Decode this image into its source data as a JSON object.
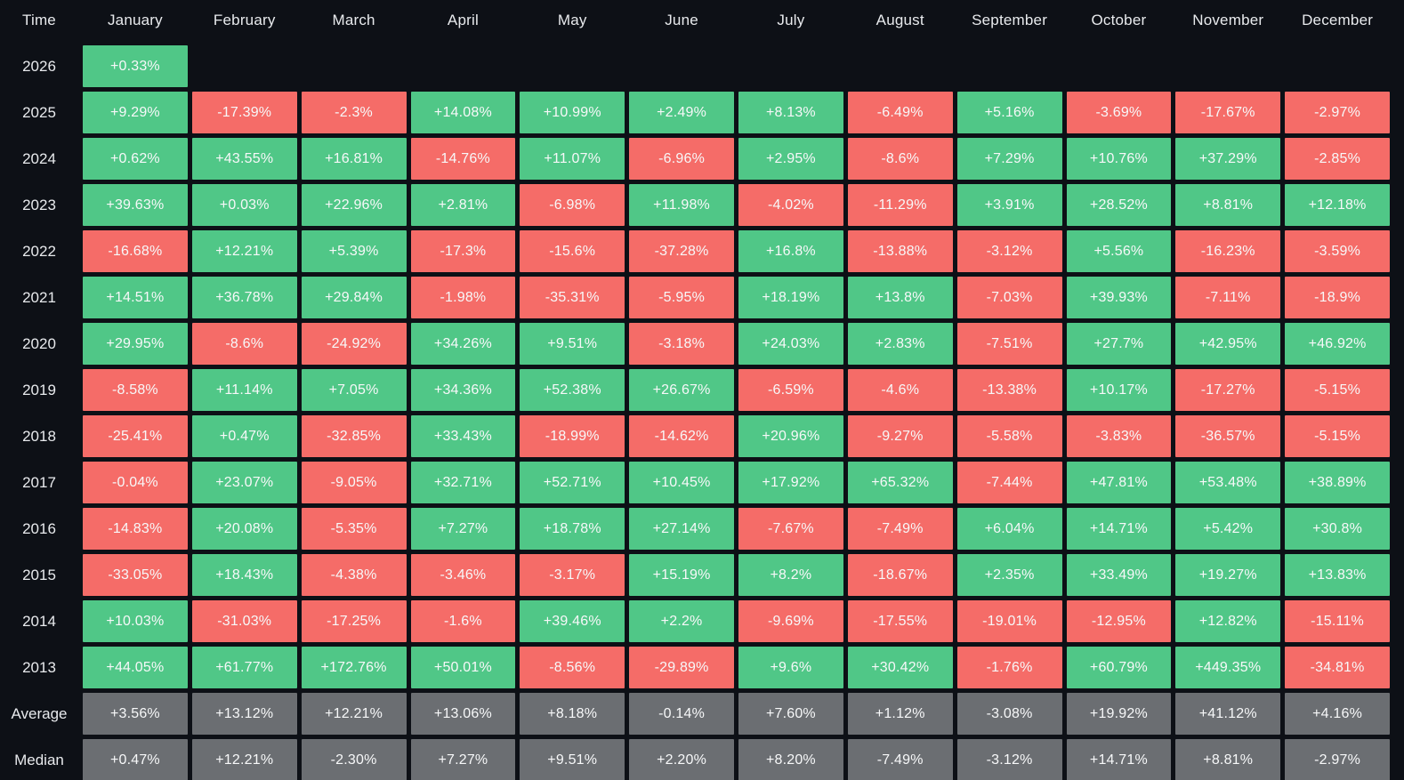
{
  "palette": {
    "background": "#0D1016",
    "positive_green": "#50C787",
    "negative_red": "#F56C68",
    "summary_gray": "#6B6E72",
    "header_text": "#E8EAED",
    "cell_text": "#F7F8F9"
  },
  "chart_data": {
    "type": "heatmap",
    "description_visible": "Monthly percentage returns table by year, green positive / red negative, gray summary rows",
    "columns": [
      "Time",
      "January",
      "February",
      "March",
      "April",
      "May",
      "June",
      "July",
      "August",
      "September",
      "October",
      "November",
      "December"
    ],
    "rows": [
      {
        "label": "2026",
        "type": "year",
        "values": [
          "+0.33%",
          null,
          null,
          null,
          null,
          null,
          null,
          null,
          null,
          null,
          null,
          null
        ]
      },
      {
        "label": "2025",
        "type": "year",
        "values": [
          "+9.29%",
          "-17.39%",
          "-2.3%",
          "+14.08%",
          "+10.99%",
          "+2.49%",
          "+8.13%",
          "-6.49%",
          "+5.16%",
          "-3.69%",
          "-17.67%",
          "-2.97%"
        ]
      },
      {
        "label": "2024",
        "type": "year",
        "values": [
          "+0.62%",
          "+43.55%",
          "+16.81%",
          "-14.76%",
          "+11.07%",
          "-6.96%",
          "+2.95%",
          "-8.6%",
          "+7.29%",
          "+10.76%",
          "+37.29%",
          "-2.85%"
        ]
      },
      {
        "label": "2023",
        "type": "year",
        "values": [
          "+39.63%",
          "+0.03%",
          "+22.96%",
          "+2.81%",
          "-6.98%",
          "+11.98%",
          "-4.02%",
          "-11.29%",
          "+3.91%",
          "+28.52%",
          "+8.81%",
          "+12.18%"
        ]
      },
      {
        "label": "2022",
        "type": "year",
        "values": [
          "-16.68%",
          "+12.21%",
          "+5.39%",
          "-17.3%",
          "-15.6%",
          "-37.28%",
          "+16.8%",
          "-13.88%",
          "-3.12%",
          "+5.56%",
          "-16.23%",
          "-3.59%"
        ]
      },
      {
        "label": "2021",
        "type": "year",
        "values": [
          "+14.51%",
          "+36.78%",
          "+29.84%",
          "-1.98%",
          "-35.31%",
          "-5.95%",
          "+18.19%",
          "+13.8%",
          "-7.03%",
          "+39.93%",
          "-7.11%",
          "-18.9%"
        ]
      },
      {
        "label": "2020",
        "type": "year",
        "values": [
          "+29.95%",
          "-8.6%",
          "-24.92%",
          "+34.26%",
          "+9.51%",
          "-3.18%",
          "+24.03%",
          "+2.83%",
          "-7.51%",
          "+27.7%",
          "+42.95%",
          "+46.92%"
        ]
      },
      {
        "label": "2019",
        "type": "year",
        "values": [
          "-8.58%",
          "+11.14%",
          "+7.05%",
          "+34.36%",
          "+52.38%",
          "+26.67%",
          "-6.59%",
          "-4.6%",
          "-13.38%",
          "+10.17%",
          "-17.27%",
          "-5.15%"
        ]
      },
      {
        "label": "2018",
        "type": "year",
        "values": [
          "-25.41%",
          "+0.47%",
          "-32.85%",
          "+33.43%",
          "-18.99%",
          "-14.62%",
          "+20.96%",
          "-9.27%",
          "-5.58%",
          "-3.83%",
          "-36.57%",
          "-5.15%"
        ]
      },
      {
        "label": "2017",
        "type": "year",
        "values": [
          "-0.04%",
          "+23.07%",
          "-9.05%",
          "+32.71%",
          "+52.71%",
          "+10.45%",
          "+17.92%",
          "+65.32%",
          "-7.44%",
          "+47.81%",
          "+53.48%",
          "+38.89%"
        ]
      },
      {
        "label": "2016",
        "type": "year",
        "values": [
          "-14.83%",
          "+20.08%",
          "-5.35%",
          "+7.27%",
          "+18.78%",
          "+27.14%",
          "-7.67%",
          "-7.49%",
          "+6.04%",
          "+14.71%",
          "+5.42%",
          "+30.8%"
        ]
      },
      {
        "label": "2015",
        "type": "year",
        "values": [
          "-33.05%",
          "+18.43%",
          "-4.38%",
          "-3.46%",
          "-3.17%",
          "+15.19%",
          "+8.2%",
          "-18.67%",
          "+2.35%",
          "+33.49%",
          "+19.27%",
          "+13.83%"
        ]
      },
      {
        "label": "2014",
        "type": "year",
        "values": [
          "+10.03%",
          "-31.03%",
          "-17.25%",
          "-1.6%",
          "+39.46%",
          "+2.2%",
          "-9.69%",
          "-17.55%",
          "-19.01%",
          "-12.95%",
          "+12.82%",
          "-15.11%"
        ]
      },
      {
        "label": "2013",
        "type": "year",
        "values": [
          "+44.05%",
          "+61.77%",
          "+172.76%",
          "+50.01%",
          "-8.56%",
          "-29.89%",
          "+9.6%",
          "+30.42%",
          "-1.76%",
          "+60.79%",
          "+449.35%",
          "-34.81%"
        ]
      },
      {
        "label": "Average",
        "type": "summary",
        "values": [
          "+3.56%",
          "+13.12%",
          "+12.21%",
          "+13.06%",
          "+8.18%",
          "-0.14%",
          "+7.60%",
          "+1.12%",
          "-3.08%",
          "+19.92%",
          "+41.12%",
          "+4.16%"
        ]
      },
      {
        "label": "Median",
        "type": "summary",
        "values": [
          "+0.47%",
          "+12.21%",
          "-2.30%",
          "+7.27%",
          "+9.51%",
          "+2.20%",
          "+8.20%",
          "-7.49%",
          "-3.12%",
          "+14.71%",
          "+8.81%",
          "-2.97%"
        ]
      }
    ]
  }
}
